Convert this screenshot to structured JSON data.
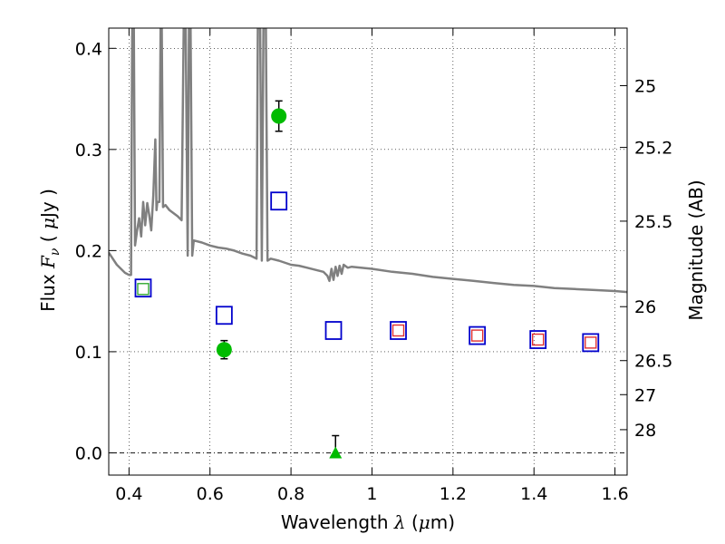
{
  "chart_data": {
    "type": "scatter",
    "xlabel_parts": [
      "Wavelength ",
      "λ",
      " (",
      "μ",
      "m)"
    ],
    "ylabel_parts": [
      "Flux ",
      "F",
      "ν",
      " ( ",
      "μ",
      "Jy )"
    ],
    "y2label": "Magnitude (AB)",
    "xlim": [
      0.35,
      1.63
    ],
    "ylim": [
      -0.022,
      0.42
    ],
    "xticks": [
      {
        "v": 0.4,
        "label": "0.4"
      },
      {
        "v": 0.6,
        "label": "0.6"
      },
      {
        "v": 0.8,
        "label": "0.8"
      },
      {
        "v": 1.0,
        "label": "1"
      },
      {
        "v": 1.2,
        "label": "1.2"
      },
      {
        "v": 1.4,
        "label": "1.4"
      },
      {
        "v": 1.6,
        "label": "1.6"
      }
    ],
    "yticks": [
      {
        "v": 0.0,
        "label": "0.0"
      },
      {
        "v": 0.1,
        "label": "0.1"
      },
      {
        "v": 0.2,
        "label": "0.2"
      },
      {
        "v": 0.3,
        "label": "0.3"
      },
      {
        "v": 0.4,
        "label": "0.4"
      }
    ],
    "y2ticks": [
      {
        "v": 25,
        "label": "25"
      },
      {
        "v": 25.2,
        "label": "25.2"
      },
      {
        "v": 25.5,
        "label": "25.5"
      },
      {
        "v": 26,
        "label": "26"
      },
      {
        "v": 26.5,
        "label": "26.5"
      },
      {
        "v": 27,
        "label": "27"
      },
      {
        "v": 28,
        "label": "28"
      }
    ],
    "grid": true,
    "zero_line": true,
    "series": [
      {
        "kind": "sed_model",
        "color": "#808080",
        "points": [
          [
            0.35,
            0.198
          ],
          [
            0.37,
            0.186
          ],
          [
            0.39,
            0.178
          ],
          [
            0.4,
            0.176
          ],
          [
            0.405,
            0.176
          ],
          [
            0.408,
            0.42
          ],
          [
            0.412,
            0.42
          ],
          [
            0.415,
            0.205
          ],
          [
            0.42,
            0.22
          ],
          [
            0.425,
            0.232
          ],
          [
            0.43,
            0.214
          ],
          [
            0.435,
            0.248
          ],
          [
            0.44,
            0.225
          ],
          [
            0.445,
            0.247
          ],
          [
            0.45,
            0.235
          ],
          [
            0.455,
            0.22
          ],
          [
            0.46,
            0.255
          ],
          [
            0.465,
            0.31
          ],
          [
            0.468,
            0.24
          ],
          [
            0.47,
            0.248
          ],
          [
            0.475,
            0.248
          ],
          [
            0.478,
            0.42
          ],
          [
            0.481,
            0.42
          ],
          [
            0.484,
            0.243
          ],
          [
            0.49,
            0.245
          ],
          [
            0.5,
            0.24
          ],
          [
            0.51,
            0.237
          ],
          [
            0.52,
            0.234
          ],
          [
            0.53,
            0.23
          ],
          [
            0.535,
            0.42
          ],
          [
            0.54,
            0.42
          ],
          [
            0.545,
            0.195
          ],
          [
            0.548,
            0.42
          ],
          [
            0.552,
            0.42
          ],
          [
            0.556,
            0.195
          ],
          [
            0.56,
            0.21
          ],
          [
            0.58,
            0.208
          ],
          [
            0.6,
            0.205
          ],
          [
            0.62,
            0.203
          ],
          [
            0.64,
            0.202
          ],
          [
            0.66,
            0.2
          ],
          [
            0.68,
            0.197
          ],
          [
            0.7,
            0.195
          ],
          [
            0.715,
            0.192
          ],
          [
            0.718,
            0.42
          ],
          [
            0.724,
            0.42
          ],
          [
            0.728,
            0.19
          ],
          [
            0.732,
            0.42
          ],
          [
            0.738,
            0.42
          ],
          [
            0.742,
            0.19
          ],
          [
            0.75,
            0.192
          ],
          [
            0.77,
            0.19
          ],
          [
            0.8,
            0.186
          ],
          [
            0.82,
            0.185
          ],
          [
            0.84,
            0.183
          ],
          [
            0.86,
            0.181
          ],
          [
            0.88,
            0.179
          ],
          [
            0.89,
            0.175
          ],
          [
            0.895,
            0.17
          ],
          [
            0.9,
            0.182
          ],
          [
            0.905,
            0.171
          ],
          [
            0.91,
            0.184
          ],
          [
            0.915,
            0.175
          ],
          [
            0.92,
            0.185
          ],
          [
            0.925,
            0.177
          ],
          [
            0.93,
            0.186
          ],
          [
            0.94,
            0.183
          ],
          [
            0.95,
            0.184
          ],
          [
            1.0,
            0.182
          ],
          [
            1.05,
            0.179
          ],
          [
            1.1,
            0.177
          ],
          [
            1.15,
            0.174
          ],
          [
            1.2,
            0.172
          ],
          [
            1.25,
            0.17
          ],
          [
            1.3,
            0.168
          ],
          [
            1.35,
            0.166
          ],
          [
            1.4,
            0.165
          ],
          [
            1.45,
            0.163
          ],
          [
            1.5,
            0.162
          ],
          [
            1.55,
            0.161
          ],
          [
            1.6,
            0.16
          ],
          [
            1.63,
            0.159
          ]
        ]
      },
      {
        "kind": "blue_squares",
        "color": "#0000cc",
        "points": [
          [
            0.435,
            0.163
          ],
          [
            0.635,
            0.136
          ],
          [
            0.77,
            0.249
          ],
          [
            0.905,
            0.121
          ],
          [
            1.065,
            0.121
          ],
          [
            1.26,
            0.116
          ],
          [
            1.41,
            0.112
          ],
          [
            1.54,
            0.109
          ]
        ]
      },
      {
        "kind": "red_squares",
        "color": "#e03030",
        "points": [
          [
            1.065,
            0.121
          ],
          [
            1.26,
            0.116
          ],
          [
            1.41,
            0.112
          ],
          [
            1.54,
            0.109
          ]
        ]
      },
      {
        "kind": "green_square",
        "color": "#33aa33",
        "points": [
          [
            0.435,
            0.162
          ]
        ]
      },
      {
        "kind": "green_circles",
        "color": "#00bb00",
        "points": [
          {
            "x": 0.635,
            "y": 0.102,
            "err": 0.009
          },
          {
            "x": 0.77,
            "y": 0.333,
            "err": 0.015
          }
        ]
      },
      {
        "kind": "green_triangle",
        "color": "#00bb00",
        "points": [
          {
            "x": 0.91,
            "y": 0.0,
            "err_hi": 0.017
          }
        ]
      }
    ]
  }
}
